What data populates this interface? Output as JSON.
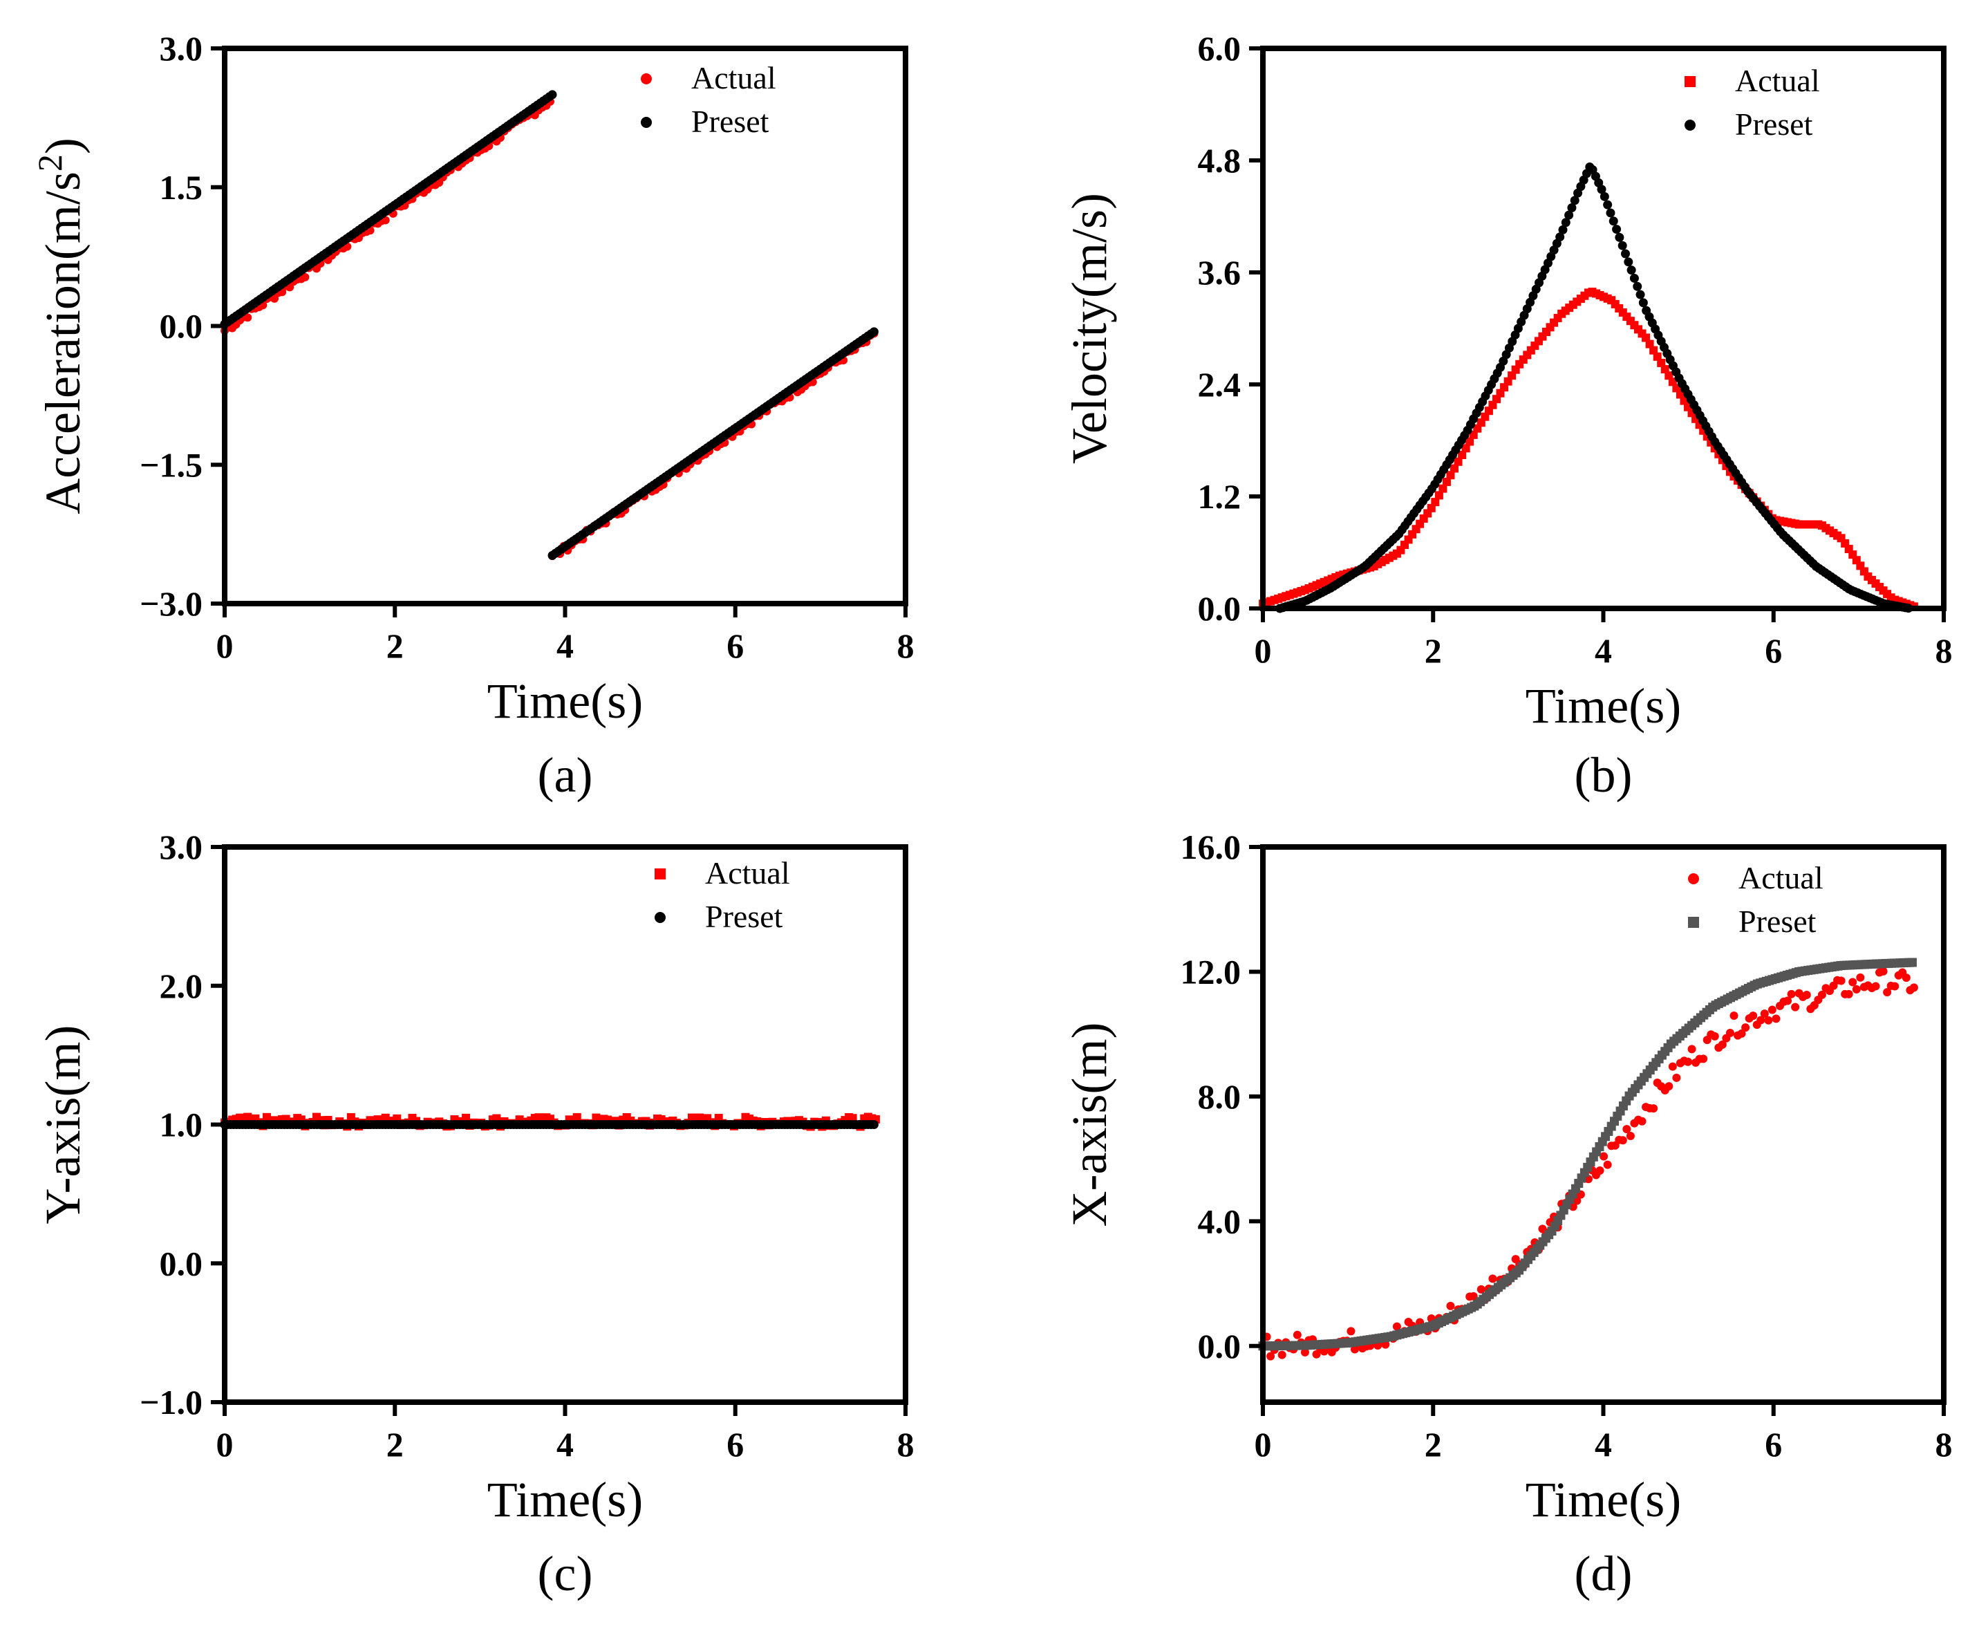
{
  "colors": {
    "actual": "#ff0000",
    "preset": "#000000",
    "preset_gray": "#555555"
  },
  "chart_data": [
    {
      "id": "a",
      "type": "scatter",
      "caption": "(a)",
      "xlabel": "Time(s)",
      "ylabel_main": "Acceleration(m/s",
      "ylabel_sup": "2",
      "ylabel_end": ")",
      "xlim": [
        0,
        8
      ],
      "ylim": [
        -3.0,
        3.0
      ],
      "xticks": [
        0,
        2,
        4,
        6,
        8
      ],
      "xtick_labels": [
        "0",
        "2",
        "4",
        "6",
        "8"
      ],
      "yticks": [
        -3.0,
        -1.5,
        0.0,
        1.5,
        3.0
      ],
      "ytick_labels": [
        "−3.0",
        "−1.5",
        "0.0",
        "1.5",
        "3.0"
      ],
      "legend": {
        "position": "top-right",
        "entries": [
          "Actual",
          "Preset"
        ]
      },
      "series": [
        {
          "name": "Actual",
          "color": "#ff0000",
          "marker": "circle",
          "segments": [
            {
              "x": [
                0,
                3.85
              ],
              "y": [
                -0.05,
                2.45
              ]
            },
            {
              "x": [
                3.85,
                7.65
              ],
              "y": [
                -2.5,
                -0.1
              ]
            }
          ],
          "noise": 0.04
        },
        {
          "name": "Preset",
          "color": "#000000",
          "marker": "circle",
          "segments": [
            {
              "x": [
                0,
                3.85
              ],
              "y": [
                0.02,
                2.5
              ]
            },
            {
              "x": [
                3.85,
                7.65
              ],
              "y": [
                -2.48,
                -0.05
              ]
            }
          ]
        }
      ]
    },
    {
      "id": "b",
      "type": "scatter",
      "caption": "(b)",
      "xlabel": "Time(s)",
      "ylabel": "Velocity(m/s)",
      "xlim": [
        0,
        8
      ],
      "ylim": [
        0.0,
        6.0
      ],
      "xticks": [
        0,
        2,
        4,
        6,
        8
      ],
      "xtick_labels": [
        "0",
        "2",
        "4",
        "6",
        "8"
      ],
      "yticks": [
        0.0,
        1.2,
        2.4,
        3.6,
        4.8,
        6.0
      ],
      "ytick_labels": [
        "0.0",
        "1.2",
        "2.4",
        "3.6",
        "4.8",
        "6.0"
      ],
      "legend": {
        "position": "top-right",
        "entries": [
          "Actual",
          "Preset"
        ]
      },
      "series": [
        {
          "name": "Actual",
          "color": "#ff0000",
          "marker": "square",
          "x": [
            0,
            0.5,
            0.9,
            1.3,
            1.6,
            2.0,
            2.5,
            3.0,
            3.5,
            3.85,
            4.1,
            4.5,
            5.0,
            5.5,
            5.85,
            6.0,
            6.3,
            6.55,
            6.8,
            7.1,
            7.4,
            7.65
          ],
          "y": [
            0.05,
            0.2,
            0.35,
            0.45,
            0.6,
            1.1,
            1.9,
            2.6,
            3.15,
            3.4,
            3.3,
            2.9,
            2.15,
            1.45,
            1.1,
            0.95,
            0.9,
            0.9,
            0.75,
            0.35,
            0.1,
            0.02
          ]
        },
        {
          "name": "Preset",
          "color": "#000000",
          "marker": "circle",
          "x": [
            0.2,
            0.5,
            0.8,
            1.2,
            1.6,
            2.0,
            2.4,
            2.8,
            3.2,
            3.5,
            3.7,
            3.85,
            4.0,
            4.2,
            4.5,
            4.9,
            5.3,
            5.7,
            6.1,
            6.5,
            6.9,
            7.3,
            7.6
          ],
          "y": [
            0.0,
            0.08,
            0.22,
            0.45,
            0.8,
            1.3,
            1.9,
            2.6,
            3.4,
            4.0,
            4.45,
            4.75,
            4.45,
            3.95,
            3.2,
            2.45,
            1.8,
            1.25,
            0.8,
            0.45,
            0.2,
            0.05,
            0.0
          ]
        }
      ]
    },
    {
      "id": "c",
      "type": "scatter",
      "caption": "(c)",
      "xlabel": "Time(s)",
      "ylabel": "Y-axis(m)",
      "xlim": [
        0,
        8
      ],
      "ylim": [
        -1.0,
        3.0
      ],
      "xticks": [
        0,
        2,
        4,
        6,
        8
      ],
      "xtick_labels": [
        "0",
        "2",
        "4",
        "6",
        "8"
      ],
      "yticks": [
        -1.0,
        0.0,
        1.0,
        2.0,
        3.0
      ],
      "ytick_labels": [
        "−1.0",
        "0.0",
        "1.0",
        "2.0",
        "3.0"
      ],
      "legend": {
        "position": "top-right",
        "entries": [
          "Actual",
          "Preset"
        ]
      },
      "series": [
        {
          "name": "Actual",
          "color": "#ff0000",
          "marker": "square",
          "x": [
            0,
            7.65
          ],
          "y": [
            1.02,
            1.02
          ],
          "noise": 0.035
        },
        {
          "name": "Preset",
          "color": "#000000",
          "marker": "circle",
          "x": [
            0,
            7.65
          ],
          "y": [
            1.0,
            1.0
          ]
        }
      ]
    },
    {
      "id": "d",
      "type": "scatter",
      "caption": "(d)",
      "xlabel": "Time(s)",
      "ylabel": "X-axis(m)",
      "xlim": [
        0,
        8
      ],
      "ylim": [
        -1.8,
        16.0
      ],
      "xticks": [
        0,
        2,
        4,
        6,
        8
      ],
      "xtick_labels": [
        "0",
        "2",
        "4",
        "6",
        "8"
      ],
      "yticks": [
        0.0,
        4.0,
        8.0,
        12.0,
        16.0
      ],
      "ytick_labels": [
        "0.0",
        "4.0",
        "8.0",
        "12.0",
        "16.0"
      ],
      "legend": {
        "position": "top-right",
        "entries": [
          "Actual",
          "Preset"
        ]
      },
      "series": [
        {
          "name": "Actual",
          "color": "#ff0000",
          "marker": "circle",
          "x": [
            0,
            0.5,
            1.0,
            1.5,
            2.0,
            2.5,
            3.0,
            3.5,
            3.85,
            4.2,
            4.6,
            5.0,
            5.5,
            6.0,
            6.5,
            7.0,
            7.3,
            7.65
          ],
          "y": [
            0.0,
            0.05,
            0.15,
            0.35,
            0.7,
            1.5,
            2.7,
            4.2,
            5.3,
            6.6,
            8.0,
            9.2,
            10.2,
            10.8,
            11.2,
            11.6,
            11.7,
            11.6
          ],
          "noise": 0.35
        },
        {
          "name": "Preset",
          "color": "#555555",
          "marker": "square",
          "x": [
            0,
            0.5,
            1.0,
            1.5,
            2.0,
            2.5,
            3.0,
            3.4,
            3.85,
            4.3,
            4.8,
            5.3,
            5.8,
            6.3,
            6.8,
            7.2,
            7.65
          ],
          "y": [
            0.0,
            0.02,
            0.1,
            0.3,
            0.65,
            1.3,
            2.4,
            3.7,
            5.9,
            8.0,
            9.7,
            10.9,
            11.6,
            12.0,
            12.2,
            12.25,
            12.3
          ]
        }
      ]
    }
  ]
}
